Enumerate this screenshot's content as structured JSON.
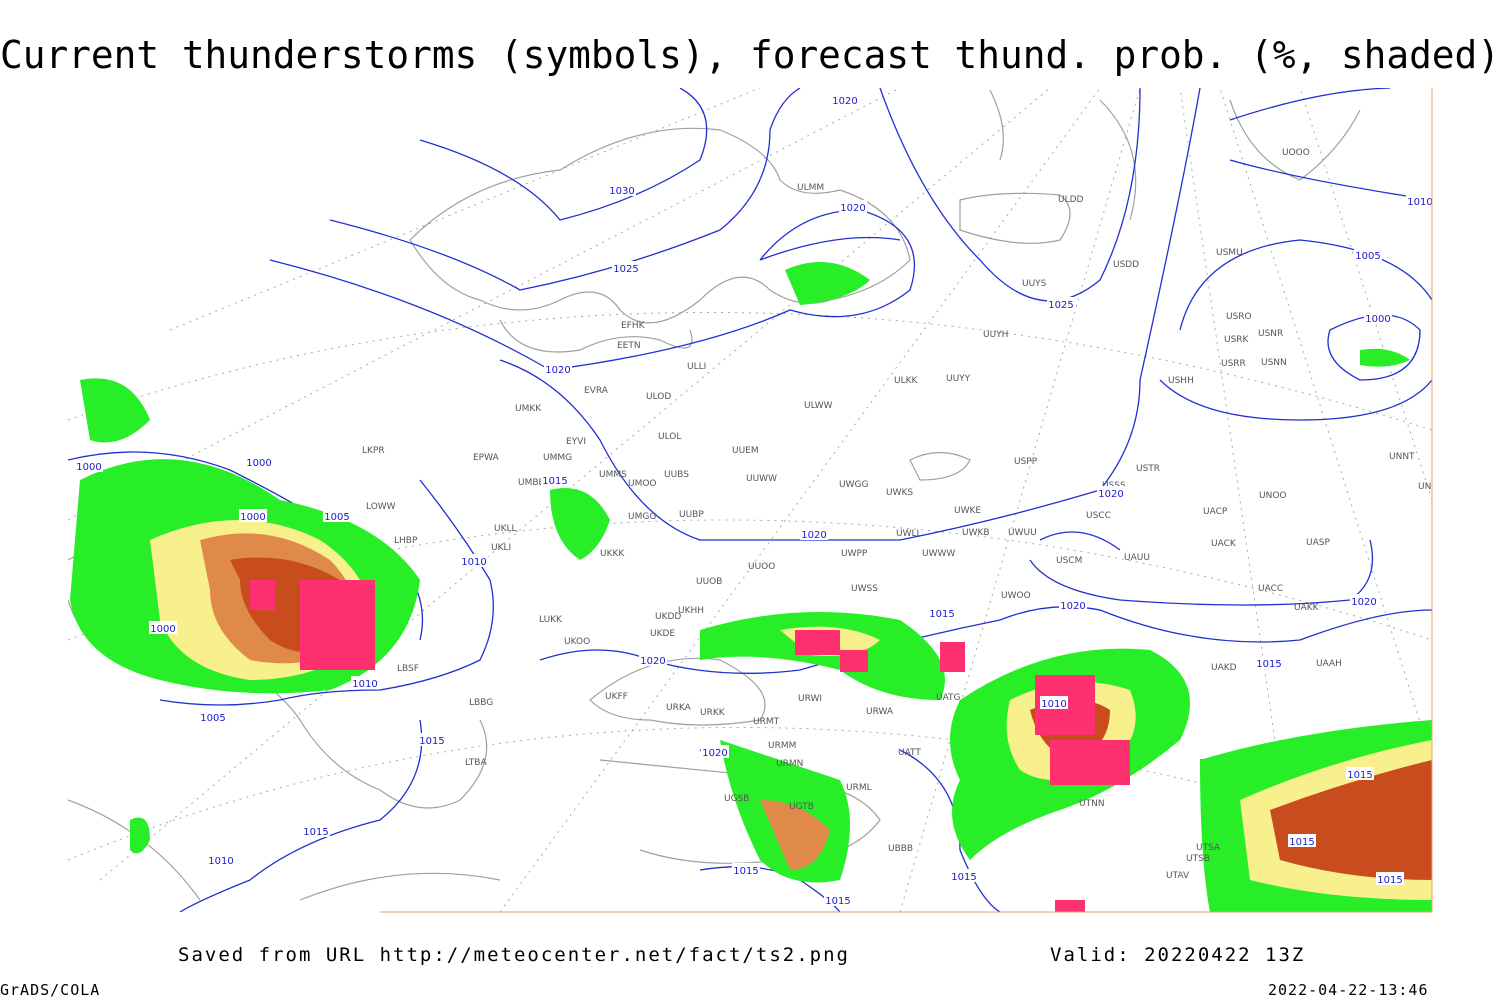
{
  "header": {
    "title": "Current thunderstorms (symbols), forecast thund. prob. (%, shaded)"
  },
  "stations": [
    "ULDD",
    "UUYS",
    "USDD",
    "USHH",
    "USMU",
    "USRO",
    "USRK",
    "USRR",
    "USNR",
    "USNN",
    "UOOO",
    "UUYH",
    "ULKK",
    "UUYY",
    "ULWW",
    "UUEM",
    "UUWW",
    "UWGG",
    "UWKS",
    "USPP",
    "USSS",
    "USTR",
    "UNOO",
    "UACP",
    "USCC",
    "UWKE",
    "UWKB",
    "UWUU",
    "UWLL",
    "UWWW",
    "UWPP",
    "USCM",
    "UAUU",
    "UACK",
    "UASP",
    "UUOO",
    "UUOB",
    "UWSS",
    "UWOO",
    "UAKK",
    "UACC",
    "UNNT",
    "UNBB",
    "UAKD",
    "UAAH",
    "ULMM",
    "EFHK",
    "EETN",
    "ULLI",
    "EVRA",
    "ULOD",
    "ULOL",
    "UMKK",
    "EYVI",
    "UMMG",
    "EPWA",
    "UMMS",
    "UMOO",
    "UUBS",
    "UMBB",
    "UUBP",
    "UMGG",
    "UKLL",
    "UKLI",
    "UKKK",
    "UKHH",
    "UKDD",
    "LUKK",
    "UKOO",
    "UKDE",
    "UKFF",
    "URKA",
    "URKK",
    "URMT",
    "URWI",
    "URWA",
    "UATG",
    "URMM",
    "URMN",
    "URML",
    "UATT",
    "UGSB",
    "UGTB",
    "UBBB",
    "UTNN",
    "UTSA",
    "UTSB",
    "UTAV",
    "LKPR",
    "LOWW",
    "LHBP",
    "LBSF",
    "LBBG",
    "LTBA"
  ],
  "isobars": [
    1020,
    1030,
    1020,
    1025,
    1025,
    1020,
    1000,
    1000,
    1000,
    1005,
    1015,
    1000,
    1010,
    1020,
    1020,
    1020,
    1020,
    1015,
    1015,
    1020,
    1010,
    1005,
    1015,
    1010,
    1020,
    1015,
    1015,
    1015,
    1015,
    1010,
    1015,
    1015,
    1015,
    1005,
    1000,
    1010
  ],
  "footer": {
    "saved": "Saved from URL http://meteocenter.net/fact/ts2.png",
    "valid": "Valid: 20220422 13Z",
    "software": "GrADS/COLA",
    "timestamp": "2022-04-22-13:46"
  }
}
